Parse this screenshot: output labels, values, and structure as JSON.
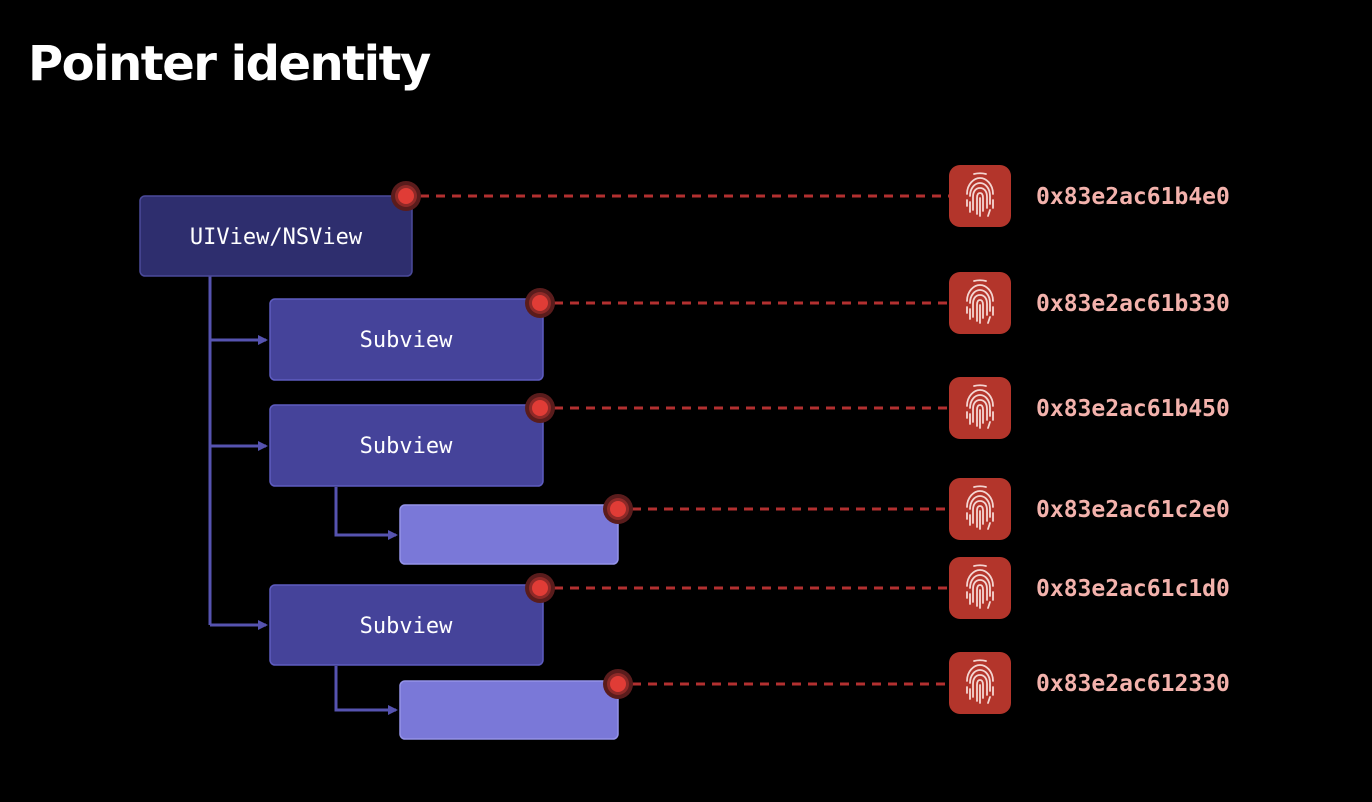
{
  "title": "Pointer identity",
  "colors": {
    "background": "#000000",
    "root_box": "#2e2e6e",
    "subview_box": "#45439a",
    "leaf_box": "#7a78d8",
    "connector": "#5653b0",
    "dashed_line": "#b23030",
    "pointer_dot": "#e03c36",
    "fingerprint_tile": "#b3352b",
    "address_text": "#f3b2ac"
  },
  "hierarchy": {
    "root": {
      "label": "UIView/NSView"
    },
    "subviews": [
      {
        "label": "Subview"
      },
      {
        "label": "Subview"
      },
      {
        "label": ""
      },
      {
        "label": "Subview"
      },
      {
        "label": ""
      }
    ]
  },
  "identities": [
    {
      "icon": "fingerprint-icon",
      "address": "0x83e2ac61b4e0"
    },
    {
      "icon": "fingerprint-icon",
      "address": "0x83e2ac61b330"
    },
    {
      "icon": "fingerprint-icon",
      "address": "0x83e2ac61b450"
    },
    {
      "icon": "fingerprint-icon",
      "address": "0x83e2ac61c2e0"
    },
    {
      "icon": "fingerprint-icon",
      "address": "0x83e2ac61c1d0"
    },
    {
      "icon": "fingerprint-icon",
      "address": "0x83e2ac612330"
    }
  ]
}
